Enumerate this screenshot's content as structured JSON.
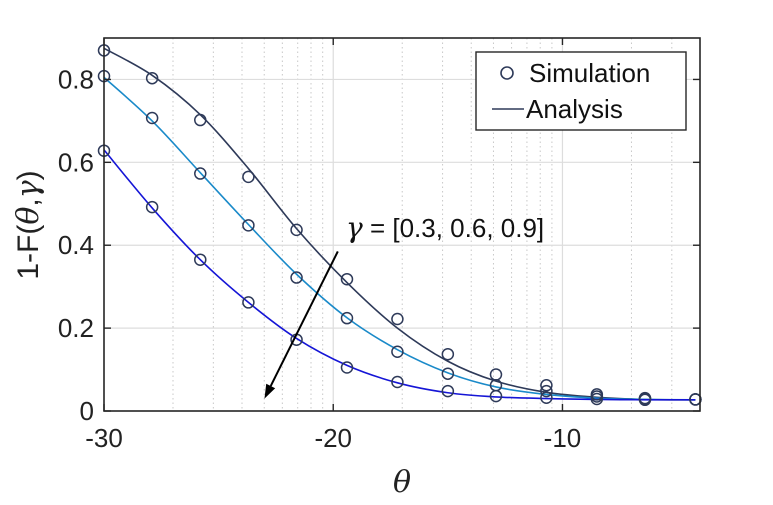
{
  "chart_data": {
    "type": "line",
    "xlabel": "θ",
    "ylabel_prefix": "1-F(",
    "ylabel_theta": "θ",
    "ylabel_comma": ",",
    "ylabel_gamma": "γ",
    "ylabel_suffix": ")",
    "xlim": [
      -30,
      -4
    ],
    "ylim": [
      0,
      0.9
    ],
    "xticks": [
      -30,
      -20,
      -10
    ],
    "xtick_labels": [
      "-30",
      "-20",
      "-10"
    ],
    "yticks": [
      0,
      0.2,
      0.4,
      0.6,
      0.8
    ],
    "ytick_labels": [
      "0",
      "0.2",
      "0.4",
      "0.6",
      "0.8"
    ],
    "grid": true,
    "legend": {
      "placement": "top-right",
      "entries": [
        {
          "marker": "circle",
          "label": "Simulation"
        },
        {
          "marker": "line",
          "label": "Analysis"
        }
      ]
    },
    "annotation": {
      "symbol": "γ",
      "text": " = [0.3, 0.6, 0.9]",
      "arrow_from": [
        -19.8,
        0.385
      ],
      "arrow_to": [
        -23.0,
        0.03
      ]
    },
    "series": [
      {
        "gamma": 0.3,
        "color": "#2e3a59",
        "x": [
          -30,
          -27.9,
          -25.8,
          -23.7,
          -21.6,
          -19.4,
          -17.2,
          -15.0,
          -12.9,
          -10.7,
          -8.5,
          -6.4,
          -4.2
        ],
        "analysis_y": [
          0.875,
          0.81,
          0.715,
          0.585,
          0.44,
          0.31,
          0.2,
          0.12,
          0.072,
          0.045,
          0.033,
          0.028,
          0.027
        ],
        "simulation_y": [
          0.87,
          0.803,
          0.702,
          0.565,
          0.437,
          0.318,
          0.222,
          0.137,
          0.088,
          0.062,
          0.04,
          0.031,
          0.028
        ]
      },
      {
        "gamma": 0.6,
        "color": "#1a8ac9",
        "x": [
          -30,
          -27.9,
          -25.8,
          -23.7,
          -21.6,
          -19.4,
          -17.2,
          -15.0,
          -12.9,
          -10.7,
          -8.5,
          -6.4,
          -4.2
        ],
        "analysis_y": [
          0.805,
          0.7,
          0.575,
          0.45,
          0.33,
          0.225,
          0.148,
          0.092,
          0.058,
          0.04,
          0.031,
          0.028,
          0.027
        ],
        "simulation_y": [
          0.808,
          0.707,
          0.573,
          0.448,
          0.322,
          0.224,
          0.143,
          0.09,
          0.062,
          0.048,
          0.035,
          0.03,
          0.028
        ]
      },
      {
        "gamma": 0.9,
        "color": "#1515d6",
        "x": [
          -30,
          -27.9,
          -25.8,
          -23.7,
          -21.6,
          -19.4,
          -17.2,
          -15.0,
          -12.9,
          -10.7,
          -8.5,
          -6.4,
          -4.2
        ],
        "analysis_y": [
          0.63,
          0.49,
          0.365,
          0.262,
          0.175,
          0.11,
          0.068,
          0.044,
          0.034,
          0.03,
          0.028,
          0.027,
          0.027
        ],
        "simulation_y": [
          0.628,
          0.492,
          0.365,
          0.262,
          0.172,
          0.105,
          0.07,
          0.048,
          0.036,
          0.032,
          0.029,
          0.027,
          0.028
        ]
      }
    ]
  }
}
